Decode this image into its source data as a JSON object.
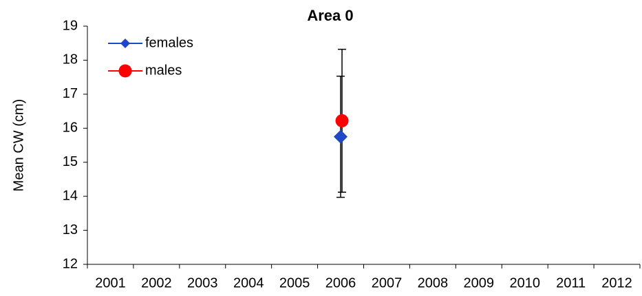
{
  "chart_data": {
    "type": "line",
    "title": "Area 0",
    "y_label": "Mean CW (cm)",
    "categories": [
      "2001",
      "2002",
      "2003",
      "2004",
      "2005",
      "2006",
      "2007",
      "2008",
      "2009",
      "2010",
      "2011",
      "2012"
    ],
    "series": [
      {
        "name": "females",
        "color": "#1f48c8",
        "marker": "diamond",
        "values": [
          null,
          null,
          null,
          null,
          null,
          15.75,
          null,
          null,
          null,
          null,
          null,
          null
        ],
        "errors": [
          null,
          null,
          null,
          null,
          null,
          1.78,
          null,
          null,
          null,
          null,
          null,
          null
        ]
      },
      {
        "name": "males",
        "color": "#ff0000",
        "marker": "circle",
        "values": [
          null,
          null,
          null,
          null,
          null,
          16.22,
          null,
          null,
          null,
          null,
          null,
          null
        ],
        "errors": [
          null,
          null,
          null,
          null,
          null,
          2.1,
          null,
          null,
          null,
          null,
          null,
          null
        ]
      }
    ],
    "ylim": [
      12,
      19
    ],
    "yticks": [
      12,
      13,
      14,
      15,
      16,
      17,
      18,
      19
    ],
    "legend": "upper left"
  }
}
